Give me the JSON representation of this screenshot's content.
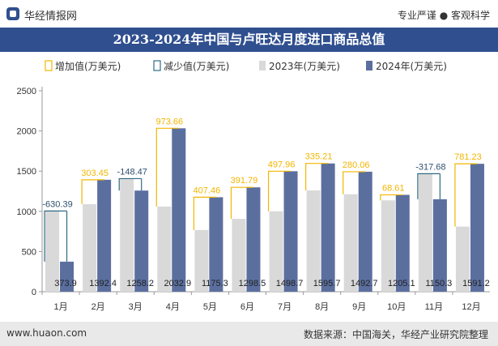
{
  "header": {
    "brand": "华经情报网",
    "tagline": "专业严谨 ● 客观科学"
  },
  "footer": {
    "site": "www.huaon.com",
    "source": "数据来源：中国海关，华经产业研究院整理"
  },
  "colors": {
    "bar_2023": "#d9d9d9",
    "bar_2024": "#5b6f9f",
    "increase": "#f2b600",
    "decrease": "#2f6b85",
    "title_bg": "#2f4f8f"
  },
  "chart_data": {
    "type": "bar",
    "title": "2023-2024年中国与卢旺达月度进口商品总值",
    "legend_position": "top",
    "legend": [
      {
        "label": "增加值(万美元)",
        "marker": "increase"
      },
      {
        "label": "减少值(万美元)",
        "marker": "decrease"
      },
      {
        "label": "2023年(万美元)",
        "marker": "bar_2023"
      },
      {
        "label": "2024年(万美元)",
        "marker": "bar_2024"
      }
    ],
    "categories": [
      "1月",
      "2月",
      "3月",
      "4月",
      "5月",
      "6月",
      "7月",
      "8月",
      "9月",
      "10月",
      "11月",
      "12月"
    ],
    "series": [
      {
        "name": "2023年(万美元)",
        "values": [
          1004.29,
          1088.95,
          1406.67,
          1059.24,
          767.89,
          906.71,
          1000.74,
          1260.49,
          1212.64,
          1136.49,
          1467.98,
          809.97
        ]
      },
      {
        "name": "2024年(万美元)",
        "values": [
          373.9,
          1392.4,
          1258.2,
          2032.9,
          1175.3,
          1298.5,
          1498.7,
          1595.7,
          1492.7,
          1205.1,
          1150.3,
          1591.2
        ]
      }
    ],
    "bar_labels": [
      "373.9",
      "1392.4",
      "1258.2",
      "2032.9",
      "1175.3",
      "1298.5",
      "1498.7",
      "1595.7",
      "1492.7",
      "1205.1",
      "1150.3",
      "1591.2"
    ],
    "change_values": [
      -630.39,
      303.45,
      -148.47,
      973.66,
      407.46,
      391.79,
      497.96,
      335.21,
      280.06,
      68.61,
      -317.68,
      781.23
    ],
    "change_labels": [
      "-630.39",
      "303.45",
      "-148.47",
      "973.66",
      "407.46",
      "391.79",
      "497.96",
      "335.21",
      "280.06",
      "68.61",
      "-317.68",
      "781.23"
    ],
    "yticks": [
      "0",
      "500",
      "1000",
      "1500",
      "2000",
      "2500"
    ],
    "ylim": [
      0,
      2500
    ],
    "grid": false
  }
}
